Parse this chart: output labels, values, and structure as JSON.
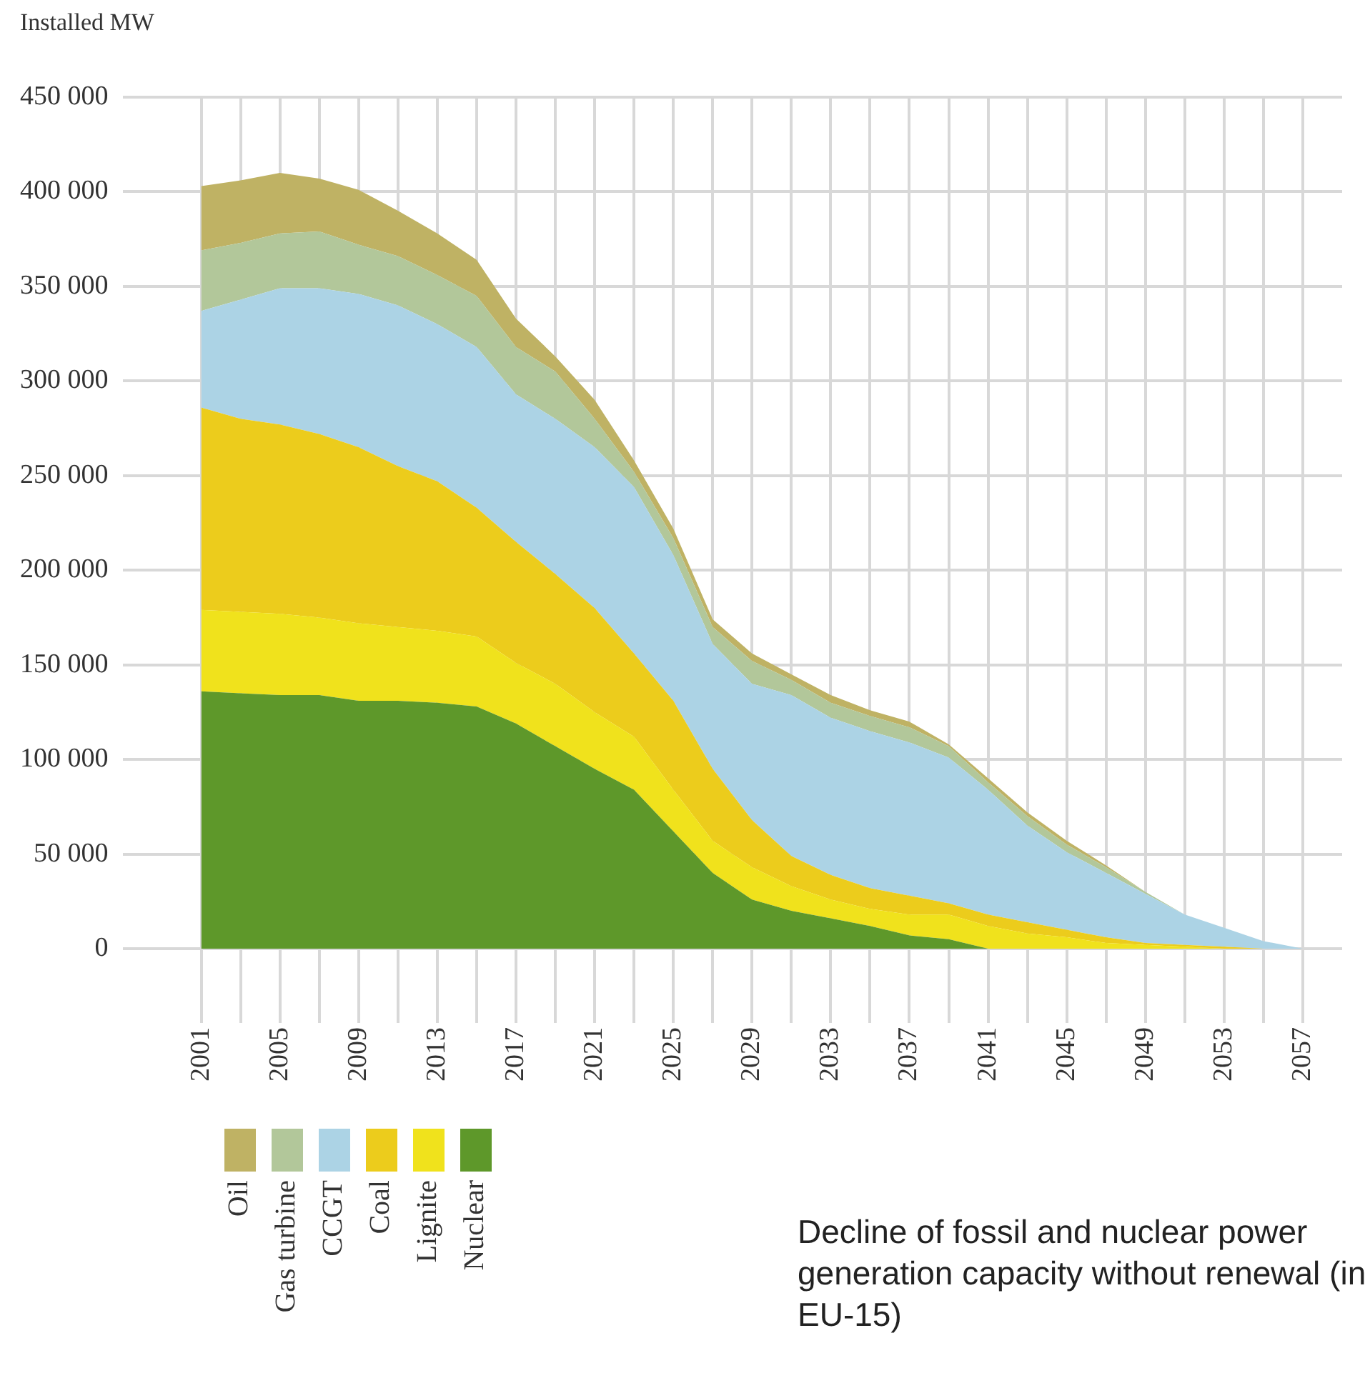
{
  "chart_data": {
    "type": "area",
    "stacked": true,
    "ylabel": "Installed MW",
    "x": [
      2001,
      2003,
      2005,
      2007,
      2009,
      2011,
      2013,
      2015,
      2017,
      2019,
      2021,
      2023,
      2025,
      2027,
      2029,
      2031,
      2033,
      2035,
      2037,
      2039,
      2041,
      2043,
      2045,
      2047,
      2049,
      2051,
      2053,
      2055,
      2057
    ],
    "series": [
      {
        "name": "Nuclear",
        "color": "#5e982a",
        "values": [
          136000,
          135000,
          134000,
          134000,
          131000,
          131000,
          130000,
          128000,
          119000,
          107000,
          95000,
          84000,
          62000,
          40000,
          26000,
          20000,
          16000,
          12000,
          7000,
          5000,
          0,
          0,
          0,
          0,
          0,
          0,
          0,
          0,
          0
        ]
      },
      {
        "name": "Lignite",
        "color": "#f0e21c",
        "values": [
          43000,
          43000,
          43000,
          41000,
          41000,
          39000,
          38000,
          37000,
          32000,
          33000,
          30000,
          28000,
          22000,
          17000,
          17000,
          13000,
          10000,
          9000,
          11000,
          13000,
          12000,
          8000,
          6000,
          3000,
          2000,
          1000,
          0,
          0,
          0
        ]
      },
      {
        "name": "Coal",
        "color": "#eccc1c",
        "values": [
          107000,
          102000,
          100000,
          97000,
          93000,
          85000,
          79000,
          68000,
          64000,
          58000,
          55000,
          44000,
          47000,
          38000,
          25000,
          16000,
          13000,
          11000,
          10000,
          6000,
          6000,
          6000,
          4000,
          3000,
          1000,
          1000,
          1000,
          0,
          0
        ]
      },
      {
        "name": "CCGT",
        "color": "#acd3e5",
        "values": [
          51000,
          63000,
          72000,
          77000,
          81000,
          85000,
          83000,
          85000,
          78000,
          82000,
          85000,
          88000,
          77000,
          66000,
          72000,
          85000,
          83000,
          83000,
          81000,
          77000,
          66000,
          51000,
          41000,
          34000,
          26000,
          16000,
          10000,
          4000,
          0
        ]
      },
      {
        "name": "Gas turbine",
        "color": "#b2c79a",
        "values": [
          32000,
          30000,
          29000,
          30000,
          26000,
          26000,
          26000,
          27000,
          25000,
          25000,
          15000,
          8000,
          9000,
          9000,
          12000,
          8000,
          8000,
          8000,
          8000,
          6000,
          4000,
          5000,
          4000,
          3000,
          1000,
          0,
          0,
          0,
          0
        ]
      },
      {
        "name": "Oil",
        "color": "#bfb264",
        "values": [
          34000,
          33000,
          32000,
          28000,
          29000,
          24000,
          22000,
          19000,
          15000,
          8000,
          10000,
          6000,
          5000,
          4000,
          4000,
          3000,
          4000,
          3000,
          3000,
          1000,
          2000,
          2000,
          2000,
          1000,
          0,
          0,
          0,
          0,
          0
        ]
      }
    ],
    "xlim": [
      1997,
      2059
    ],
    "xticks": [
      2001,
      {
        "value": 2003,
        "label": null
      },
      2005,
      {
        "value": 2007,
        "label": null
      },
      2009,
      {
        "value": 2011,
        "label": null
      },
      2013,
      {
        "value": 2015,
        "label": null
      },
      2017,
      {
        "value": 2019,
        "label": null
      },
      2021,
      {
        "value": 2023,
        "label": null
      },
      2025,
      {
        "value": 2027,
        "label": null
      },
      2029,
      {
        "value": 2031,
        "label": null
      },
      2033,
      {
        "value": 2035,
        "label": null
      },
      2037,
      {
        "value": 2039,
        "label": null
      },
      2041,
      {
        "value": 2043,
        "label": null
      },
      2045,
      {
        "value": 2047,
        "label": null
      },
      2049,
      {
        "value": 2051,
        "label": null
      },
      2053,
      {
        "value": 2055,
        "label": null
      },
      2057
    ],
    "ylim": [
      0,
      450000
    ],
    "yticks": [
      {
        "value": 0,
        "label": "0"
      },
      {
        "value": 50000,
        "label": "50 000"
      },
      {
        "value": 100000,
        "label": "100 000"
      },
      {
        "value": 150000,
        "label": "150 000"
      },
      {
        "value": 200000,
        "label": "200 000"
      },
      {
        "value": 250000,
        "label": "250 000"
      },
      {
        "value": 300000,
        "label": "300 000"
      },
      {
        "value": 350000,
        "label": "350 000"
      },
      {
        "value": 400000,
        "label": "400 000"
      },
      {
        "value": 450000,
        "label": "450 000"
      }
    ],
    "grid": true,
    "legend": "bottom left",
    "annotations": [
      "Decline of fossil and nuclear power generation capacity without renewal (in EU-15)"
    ]
  }
}
